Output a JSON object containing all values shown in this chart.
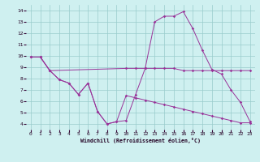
{
  "xlabel": "Windchill (Refroidissement éolien,°C)",
  "xlim": [
    -0.5,
    23.5
  ],
  "ylim": [
    3.5,
    14.5
  ],
  "yticks": [
    4,
    5,
    6,
    7,
    8,
    9,
    10,
    11,
    12,
    13,
    14
  ],
  "xticks": [
    0,
    1,
    2,
    3,
    4,
    5,
    6,
    7,
    8,
    9,
    10,
    11,
    12,
    13,
    14,
    15,
    16,
    17,
    18,
    19,
    20,
    21,
    22,
    23
  ],
  "bg_color": "#cff0f0",
  "line_color": "#993399",
  "grid_color": "#99cccc",
  "line1_x": [
    0,
    1,
    2,
    3,
    4,
    5,
    6,
    7,
    8,
    9,
    10,
    11,
    12,
    13,
    14,
    15,
    16,
    17,
    18,
    19,
    20,
    21,
    22,
    23
  ],
  "line1_y": [
    9.9,
    9.9,
    8.7,
    7.9,
    7.6,
    6.6,
    7.6,
    5.1,
    4.0,
    4.2,
    4.3,
    6.6,
    8.9,
    13.0,
    13.5,
    13.5,
    13.9,
    12.4,
    10.5,
    8.8,
    8.4,
    7.0,
    5.9,
    4.2
  ],
  "line2_x": [
    0,
    1,
    2,
    10,
    11,
    12,
    13,
    14,
    15,
    16,
    17,
    18,
    19,
    20,
    21,
    22,
    23
  ],
  "line2_y": [
    9.9,
    9.9,
    8.7,
    8.9,
    8.9,
    8.9,
    8.9,
    8.9,
    8.9,
    8.7,
    8.7,
    8.7,
    8.7,
    8.7,
    8.7,
    8.7,
    8.7
  ],
  "line3_x": [
    0,
    1,
    2,
    3,
    4,
    5,
    6,
    7,
    8,
    9,
    10,
    11,
    12,
    13,
    14,
    15,
    16,
    17,
    18,
    19,
    20,
    21,
    22,
    23
  ],
  "line3_y": [
    9.9,
    9.9,
    8.7,
    7.9,
    7.6,
    6.6,
    7.6,
    5.1,
    4.0,
    4.2,
    6.5,
    6.3,
    6.1,
    5.9,
    5.7,
    5.5,
    5.3,
    5.1,
    4.9,
    4.7,
    4.5,
    4.3,
    4.1,
    4.1
  ]
}
